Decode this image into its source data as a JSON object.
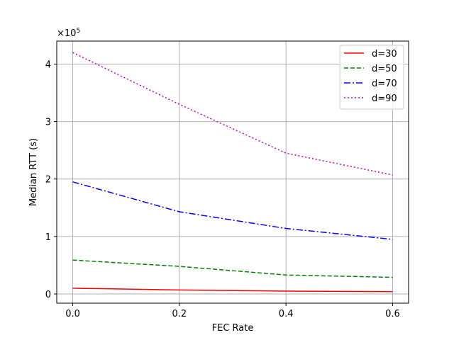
{
  "chart_data": {
    "type": "line",
    "title": "",
    "xlabel": "FEC Rate",
    "ylabel": "Median RTT (s)",
    "offset_text": "×10",
    "offset_exponent": "5",
    "x": [
      0.0,
      0.2,
      0.4,
      0.6
    ],
    "x_ticks": [
      0.0,
      0.2,
      0.4,
      0.6
    ],
    "x_tick_labels": [
      "0.0",
      "0.2",
      "0.4",
      "0.6"
    ],
    "y_ticks": [
      0,
      100000,
      200000,
      300000,
      400000
    ],
    "y_tick_labels": [
      "0",
      "1",
      "2",
      "3",
      "4"
    ],
    "xlim": [
      -0.03,
      0.63
    ],
    "ylim": [
      -16000,
      440000
    ],
    "grid": true,
    "legend_position": "top-right",
    "series": [
      {
        "name": "d=30",
        "color": "#ff0000",
        "dash": "solid",
        "values": [
          10000,
          7000,
          5000,
          4000
        ]
      },
      {
        "name": "d=50",
        "color": "#008000",
        "dash": "dashed",
        "values": [
          59000,
          48000,
          33000,
          29000
        ]
      },
      {
        "name": "d=70",
        "color": "#0000ff",
        "dash": "dashdot",
        "values": [
          195000,
          143000,
          114000,
          95000
        ]
      },
      {
        "name": "d=90",
        "color": "#bf00bf",
        "dash": "dotted",
        "values": [
          420000,
          330000,
          245000,
          207000
        ]
      }
    ]
  }
}
